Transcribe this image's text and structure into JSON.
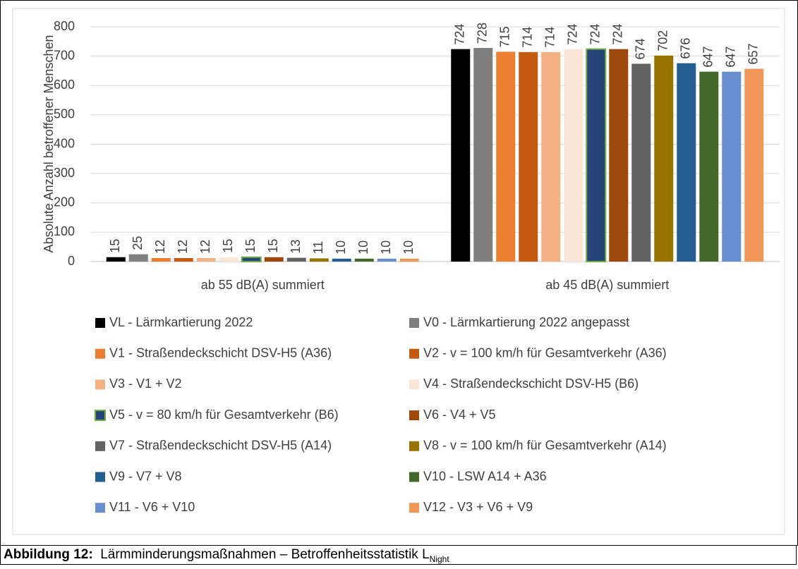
{
  "chart_data": {
    "type": "bar",
    "ylabel": "Absolute Anzahl betroffener Menschen",
    "categories": [
      "ab 55 dB(A) summiert",
      "ab 45 dB(A) summiert"
    ],
    "ylim": [
      0,
      800
    ],
    "yticks": [
      0,
      100,
      200,
      300,
      400,
      500,
      600,
      700,
      800
    ],
    "grid": true,
    "legend": "bottom",
    "series": [
      {
        "name": "VL - Lärmkartierung 2022",
        "color": "#000000",
        "values": [
          15,
          724
        ]
      },
      {
        "name": "V0 - Lärmkartierung 2022 angepasst",
        "color": "#7f7f7f",
        "values": [
          25,
          728
        ]
      },
      {
        "name": "V1 - Straßendeckschicht DSV-H5 (A36)",
        "color": "#ed7d31",
        "values": [
          12,
          715
        ]
      },
      {
        "name": "V2 - v = 100 km/h für Gesamtverkehr (A36)",
        "color": "#c55a11",
        "values": [
          12,
          714
        ]
      },
      {
        "name": "V3 - V1 + V2",
        "color": "#f4b183",
        "values": [
          12,
          714
        ]
      },
      {
        "name": "V4 - Straßendeckschicht DSV-H5 (B6)",
        "color": "#fbe5d6",
        "values": [
          15,
          724
        ]
      },
      {
        "name": "V5 - v = 80 km/h für Gesamtverkehr (B6)",
        "color": "#264478",
        "edgecolor": "#70ad47",
        "values": [
          15,
          724
        ]
      },
      {
        "name": "V6 - V4 + V5",
        "color": "#9e480e",
        "values": [
          15,
          724
        ]
      },
      {
        "name": "V7 - Straßendeckschicht DSV-H5 (A14)",
        "color": "#636363",
        "values": [
          13,
          674
        ]
      },
      {
        "name": "V8 - v = 100 km/h für Gesamtverkehr (A14)",
        "color": "#997300",
        "values": [
          11,
          702
        ]
      },
      {
        "name": "V9 - V7 + V8",
        "color": "#255e91",
        "values": [
          10,
          676
        ]
      },
      {
        "name": "V10 - LSW A14 + A36",
        "color": "#43682b",
        "values": [
          10,
          647
        ]
      },
      {
        "name": "V11 - V6 + V10",
        "color": "#698ed0",
        "values": [
          10,
          647
        ]
      },
      {
        "name": "V12 - V3 + V6 + V9",
        "color": "#f1975a",
        "values": [
          10,
          657
        ]
      }
    ]
  },
  "caption": {
    "label": "Abbildung 12:",
    "text": "Lärmminderungsmaßnahmen – Betroffenheitsstatistik L",
    "subscript": "Night"
  }
}
